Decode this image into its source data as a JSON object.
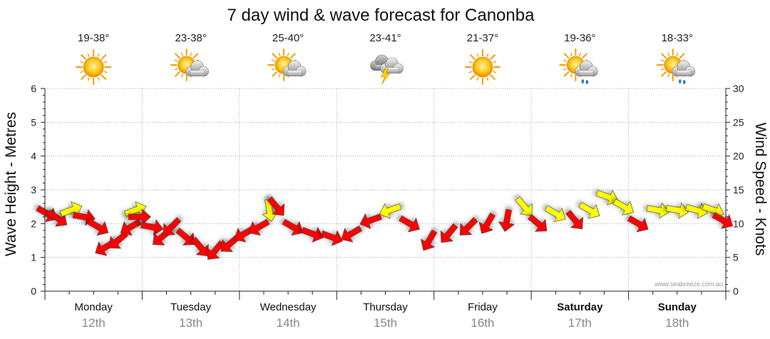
{
  "chart_data": {
    "type": "line",
    "title": "7 day wind & wave forecast for Canonba",
    "ylabel_left": "Wave Height - Metres",
    "ylabel_right": "Wind Speed - Knots",
    "ylim_left": [
      0,
      6
    ],
    "ylim_right": [
      0,
      30
    ],
    "yticks_left": [
      "0",
      "1",
      "2",
      "3",
      "4",
      "5",
      "6"
    ],
    "yticks_right": [
      "0",
      "5",
      "10",
      "15",
      "20",
      "25",
      "30"
    ],
    "days": [
      {
        "day": "Monday",
        "date": "12th",
        "temp": "19-38°",
        "weather": "sunny",
        "bold": false
      },
      {
        "day": "Tuesday",
        "date": "13th",
        "temp": "23-38°",
        "weather": "partly-cloudy",
        "bold": false
      },
      {
        "day": "Wednesday",
        "date": "14th",
        "temp": "25-40°",
        "weather": "partly-cloudy",
        "bold": false
      },
      {
        "day": "Thursday",
        "date": "15th",
        "temp": "23-41°",
        "weather": "thunderstorm",
        "bold": false
      },
      {
        "day": "Friday",
        "date": "16th",
        "temp": "21-37°",
        "weather": "sunny",
        "bold": false
      },
      {
        "day": "Saturday",
        "date": "17th",
        "temp": "19-36°",
        "weather": "cloudy-rain",
        "bold": true
      },
      {
        "day": "Sunday",
        "date": "18th",
        "temp": "18-33°",
        "weather": "cloudy-rain",
        "bold": true
      }
    ],
    "wind_arrow_colors": {
      "strong": "#ff0000",
      "light": "#ffff00"
    },
    "wind": [
      {
        "t": 0.02,
        "speed": 11.5,
        "dir": 300,
        "level": "strong"
      },
      {
        "t": 0.13,
        "speed": 10.8,
        "dir": 305,
        "level": "strong"
      },
      {
        "t": 0.27,
        "speed": 12.0,
        "dir": 250,
        "level": "light"
      },
      {
        "t": 0.4,
        "speed": 11.0,
        "dir": 280,
        "level": "strong"
      },
      {
        "t": 0.55,
        "speed": 9.5,
        "dir": 300,
        "level": "strong"
      },
      {
        "t": 0.62,
        "speed": 6.5,
        "dir": 60,
        "level": "strong"
      },
      {
        "t": 0.75,
        "speed": 7.5,
        "dir": 50,
        "level": "strong"
      },
      {
        "t": 0.88,
        "speed": 9.5,
        "dir": 60,
        "level": "strong"
      },
      {
        "t": 0.93,
        "speed": 12.0,
        "dir": 250,
        "level": "light"
      },
      {
        "t": 0.97,
        "speed": 11.0,
        "dir": 270,
        "level": "strong"
      },
      {
        "t": 1.1,
        "speed": 9.5,
        "dir": 280,
        "level": "strong"
      },
      {
        "t": 1.2,
        "speed": 8.0,
        "dir": 50,
        "level": "strong"
      },
      {
        "t": 1.3,
        "speed": 9.5,
        "dir": 45,
        "level": "strong"
      },
      {
        "t": 1.45,
        "speed": 8.0,
        "dir": 310,
        "level": "strong"
      },
      {
        "t": 1.6,
        "speed": 6.5,
        "dir": 320,
        "level": "strong"
      },
      {
        "t": 1.75,
        "speed": 6.0,
        "dir": 40,
        "level": "strong"
      },
      {
        "t": 1.9,
        "speed": 7.0,
        "dir": 50,
        "level": "strong"
      },
      {
        "t": 2.05,
        "speed": 8.5,
        "dir": 60,
        "level": "strong"
      },
      {
        "t": 2.2,
        "speed": 9.5,
        "dir": 60,
        "level": "strong"
      },
      {
        "t": 2.31,
        "speed": 12.0,
        "dir": 350,
        "level": "light"
      },
      {
        "t": 2.38,
        "speed": 12.5,
        "dir": 320,
        "level": "strong"
      },
      {
        "t": 2.55,
        "speed": 9.5,
        "dir": 300,
        "level": "strong"
      },
      {
        "t": 2.75,
        "speed": 8.5,
        "dir": 290,
        "level": "strong"
      },
      {
        "t": 2.95,
        "speed": 8.0,
        "dir": 290,
        "level": "strong"
      },
      {
        "t": 3.15,
        "speed": 8.5,
        "dir": 60,
        "level": "strong"
      },
      {
        "t": 3.35,
        "speed": 10.5,
        "dir": 70,
        "level": "strong"
      },
      {
        "t": 3.55,
        "speed": 12.0,
        "dir": 70,
        "level": "light"
      },
      {
        "t": 3.75,
        "speed": 10.0,
        "dir": 300,
        "level": "strong"
      },
      {
        "t": 3.95,
        "speed": 7.5,
        "dir": 30,
        "level": "strong"
      },
      {
        "t": 4.15,
        "speed": 8.5,
        "dir": 40,
        "level": "strong"
      },
      {
        "t": 4.35,
        "speed": 9.5,
        "dir": 45,
        "level": "strong"
      },
      {
        "t": 4.55,
        "speed": 10.0,
        "dir": 30,
        "level": "strong"
      },
      {
        "t": 4.75,
        "speed": 10.5,
        "dir": 10,
        "level": "strong"
      },
      {
        "t": 4.93,
        "speed": 12.5,
        "dir": 320,
        "level": "light"
      },
      {
        "t": 5.07,
        "speed": 10.0,
        "dir": 310,
        "level": "strong"
      },
      {
        "t": 5.25,
        "speed": 11.5,
        "dir": 300,
        "level": "light"
      },
      {
        "t": 5.45,
        "speed": 10.5,
        "dir": 320,
        "level": "strong"
      },
      {
        "t": 5.6,
        "speed": 12.0,
        "dir": 300,
        "level": "light"
      },
      {
        "t": 5.78,
        "speed": 14.0,
        "dir": 290,
        "level": "light"
      },
      {
        "t": 5.95,
        "speed": 12.5,
        "dir": 300,
        "level": "light"
      },
      {
        "t": 6.1,
        "speed": 10.0,
        "dir": 300,
        "level": "strong"
      },
      {
        "t": 6.3,
        "speed": 12.0,
        "dir": 280,
        "level": "light"
      },
      {
        "t": 6.5,
        "speed": 12.0,
        "dir": 280,
        "level": "light"
      },
      {
        "t": 6.7,
        "speed": 12.0,
        "dir": 285,
        "level": "light"
      },
      {
        "t": 6.87,
        "speed": 12.0,
        "dir": 290,
        "level": "light"
      },
      {
        "t": 6.97,
        "speed": 10.5,
        "dir": 300,
        "level": "strong"
      }
    ],
    "credit": "www.seabreeze.com.au"
  }
}
